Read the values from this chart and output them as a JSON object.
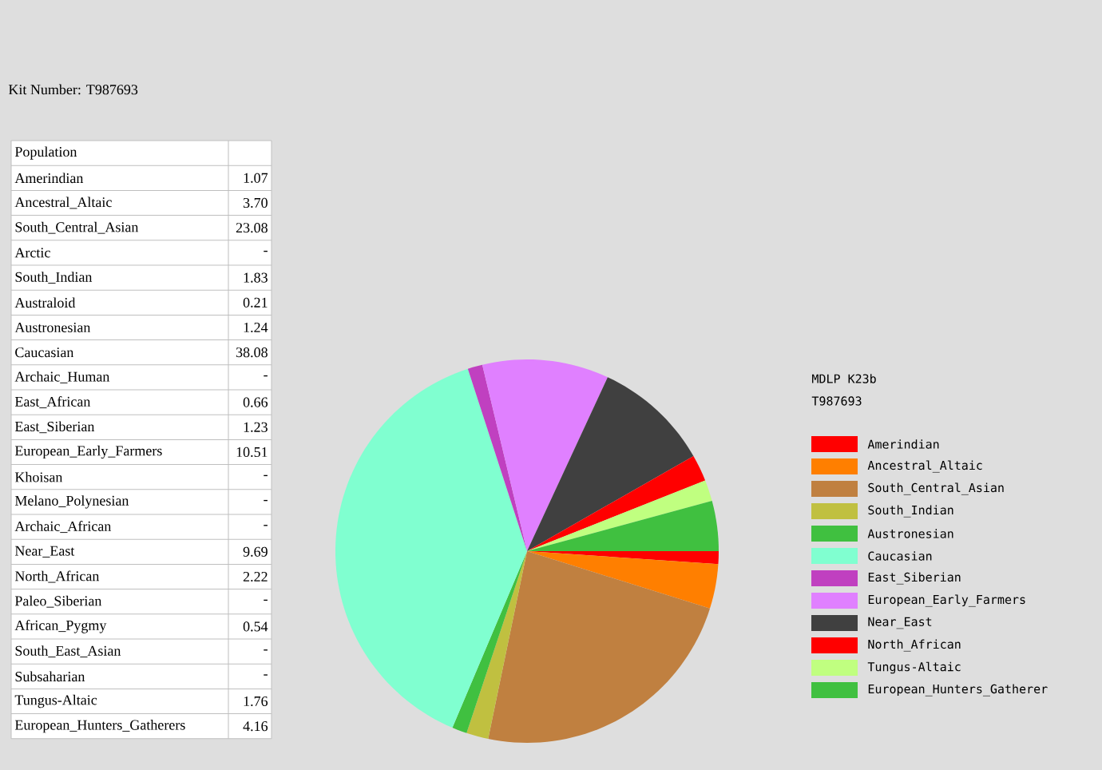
{
  "chart_data": [
    {
      "type": "other",
      "title": "Population",
      "annotations": [
        "Kit Number: T987693"
      ],
      "categories": [
        "Amerindian",
        "Ancestral_Altaic",
        "South_Central_Asian",
        "Arctic",
        "South_Indian",
        "Australoid",
        "Austronesian",
        "Caucasian",
        "Archaic_Human",
        "East_African",
        "East_Siberian",
        "European_Early_Farmers",
        "Khoisan",
        "Melano_Polynesian",
        "Archaic_African",
        "Near_East",
        "North_African",
        "Paleo_Siberian",
        "African_Pygmy",
        "South_East_Asian",
        "Subsaharian",
        "Tungus-Altaic",
        "European_Hunters_Gatherers"
      ],
      "value_labels": [
        "1.07",
        "3.70",
        "23.08",
        "-",
        "1.83",
        "0.21",
        "1.24",
        "38.08",
        "-",
        "0.66",
        "1.23",
        "10.51",
        "-",
        "-",
        "-",
        "9.69",
        "2.22",
        "-",
        "0.54",
        "-",
        "-",
        "1.76",
        "4.16"
      ]
    },
    {
      "type": "pie",
      "title": "MDLP K23b",
      "subtitle": "T987693",
      "legend": "right",
      "categories": [
        "Amerindian",
        "Ancestral_Altaic",
        "South_Central_Asian",
        "South_Indian",
        "Austronesian",
        "Caucasian",
        "East_Siberian",
        "European_Early_Farmers",
        "Near_East",
        "North_African",
        "Tungus-Altaic",
        "European_Hunters_Gatherer"
      ],
      "values": [
        1.07,
        3.7,
        23.08,
        1.83,
        1.24,
        38.08,
        1.23,
        10.51,
        9.69,
        2.22,
        1.76,
        4.16
      ],
      "colors": [
        "#ff0000",
        "#ff7f00",
        "#c08040",
        "#c0c040",
        "#40c040",
        "#80ffd0",
        "#c040c0",
        "#e080ff",
        "#404040",
        "#ff0000",
        "#c0ff80",
        "#40c040"
      ]
    }
  ]
}
